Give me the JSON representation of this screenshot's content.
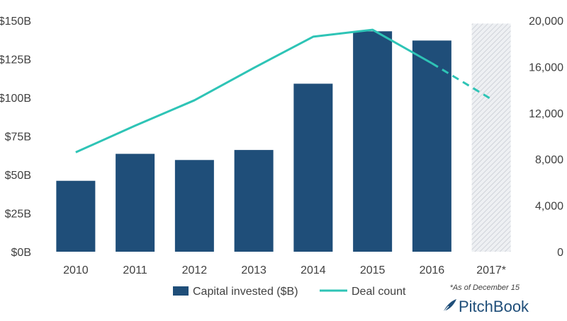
{
  "chart_data": {
    "type": "bar",
    "categories": [
      "2010",
      "2011",
      "2012",
      "2013",
      "2014",
      "2015",
      "2016",
      "2017*"
    ],
    "series": [
      {
        "name": "Capital invested ($B)",
        "type": "bar",
        "axis": "left",
        "values": [
          46,
          63.5,
          59.5,
          66,
          109,
          143,
          137,
          148
        ],
        "estimated": [
          false,
          false,
          false,
          false,
          false,
          false,
          false,
          true
        ]
      },
      {
        "name": "Deal count",
        "type": "line",
        "axis": "right",
        "values": [
          8600,
          10900,
          13100,
          15900,
          18600,
          19200,
          16300,
          13200
        ],
        "projected_from_index": 6
      }
    ],
    "y_left": {
      "ylim": [
        0,
        150
      ],
      "ticks": [
        "$0B",
        "$25B",
        "$50B",
        "$75B",
        "$100B",
        "$125B",
        "$150B"
      ]
    },
    "y_right": {
      "ylim": [
        0,
        20000
      ],
      "ticks": [
        "0",
        "4,000",
        "8,000",
        "12,000",
        "16,000",
        "20,000"
      ]
    },
    "grid": false,
    "legend": "bottom",
    "note": "*As of December 15",
    "colors": {
      "bar": "#1f4e79",
      "bar_estimated": "#d9dde3",
      "line": "#2ec4b6",
      "axis_text": "#404040"
    }
  },
  "branding": {
    "name": "PitchBook",
    "icon": "feather-icon"
  }
}
